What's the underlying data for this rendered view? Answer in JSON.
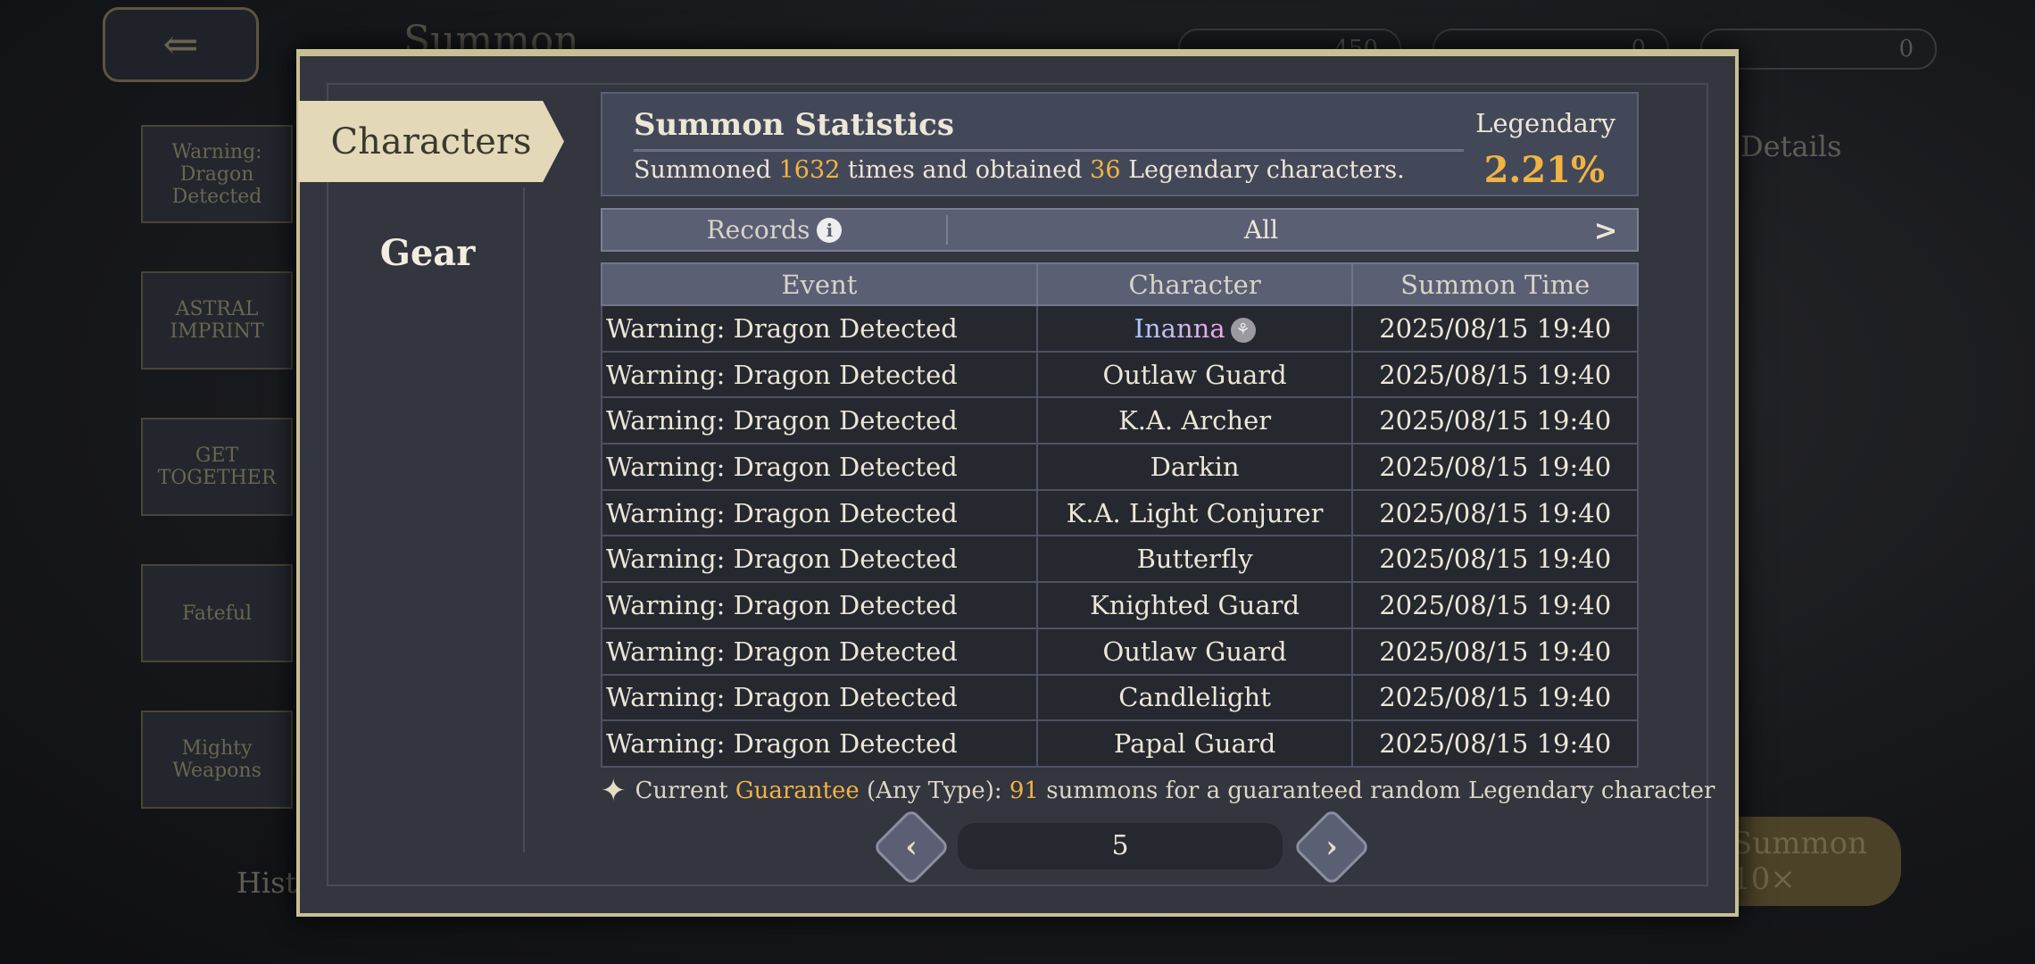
{
  "background": {
    "back_icon": "arrow-left-icon",
    "page_title": "Summon",
    "currencies": [
      "450",
      "0",
      "0"
    ],
    "left_items": [
      "Warning: Dragon Detected",
      "ASTRAL IMPRINT",
      "GET TOGETHER",
      "Fateful",
      "Mighty Weapons"
    ],
    "details_label": "Details",
    "summon10_label": "Summon 10×",
    "history_label": "History"
  },
  "tabs": {
    "characters": "Characters",
    "gear": "Gear"
  },
  "stats": {
    "title": "Summon Statistics",
    "text_prefix": "Summoned",
    "count": "1632",
    "text_mid": "times and obtained",
    "legendary_count": "36",
    "text_suffix": "Legendary characters.",
    "legendary_label": "Legendary",
    "legendary_rate": "2.21%"
  },
  "records": {
    "label": "Records",
    "filter": "All",
    "next_icon": "chevron-right-icon"
  },
  "table": {
    "headers": [
      "Event",
      "Character",
      "Summon Time"
    ],
    "rows": [
      [
        "Warning: Dragon Detected",
        "Inanna",
        "2025/08/15 19:40"
      ],
      [
        "Warning: Dragon Detected",
        "Outlaw Guard",
        "2025/08/15 19:40"
      ],
      [
        "Warning: Dragon Detected",
        "K.A. Archer",
        "2025/08/15 19:40"
      ],
      [
        "Warning: Dragon Detected",
        "Darkin",
        "2025/08/15 19:40"
      ],
      [
        "Warning: Dragon Detected",
        "K.A. Light Conjurer",
        "2025/08/15 19:40"
      ],
      [
        "Warning: Dragon Detected",
        "Butterfly",
        "2025/08/15 19:40"
      ],
      [
        "Warning: Dragon Detected",
        "Knighted Guard",
        "2025/08/15 19:40"
      ],
      [
        "Warning: Dragon Detected",
        "Outlaw Guard",
        "2025/08/15 19:40"
      ],
      [
        "Warning: Dragon Detected",
        "Candlelight",
        "2025/08/15 19:40"
      ],
      [
        "Warning: Dragon Detected",
        "Papal Guard",
        "2025/08/15 19:40"
      ]
    ]
  },
  "guarantee": {
    "prefix": "Current",
    "keyword": "Guarantee",
    "type": "(Any Type):",
    "count": "91",
    "suffix": "summons for a guaranteed random Legendary character"
  },
  "pagination": {
    "page": "5"
  },
  "colors": {
    "accent": "#f0b443",
    "frame": "#c9bf94",
    "panel": "#33353f"
  }
}
